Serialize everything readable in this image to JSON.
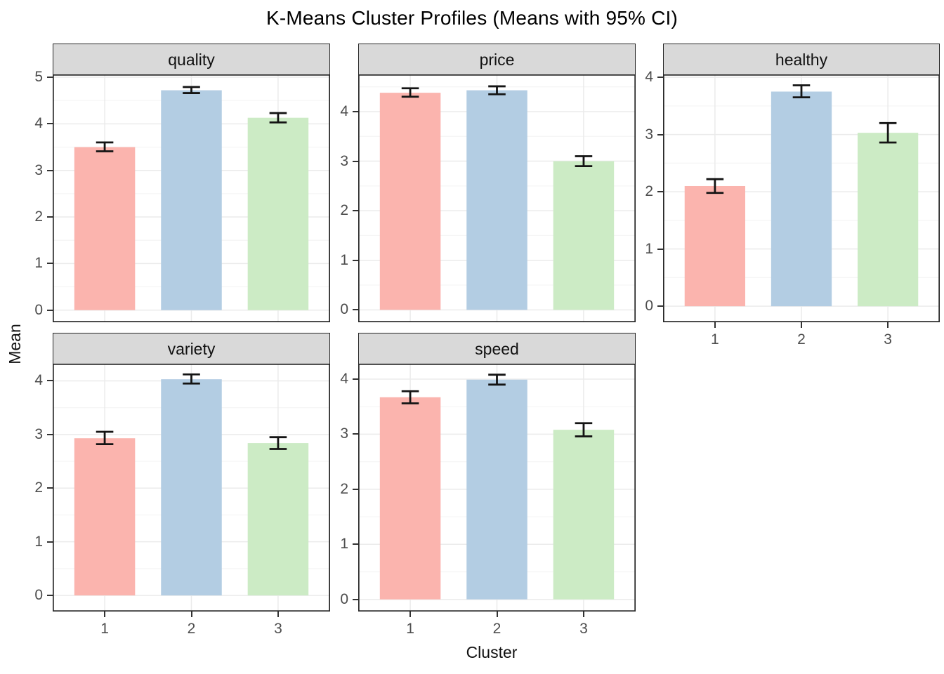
{
  "title": "K-Means Cluster Profiles (Means with 95% CI)",
  "y_axis_title": "Mean",
  "x_axis_title": "Cluster",
  "chart_data": {
    "type": "bar",
    "title": "K-Means Cluster Profiles (Means with 95% CI)",
    "xlabel": "Cluster",
    "ylabel": "Mean",
    "categories": [
      "1",
      "2",
      "3"
    ],
    "error_bar_meaning": "95% confidence interval",
    "bar_colors": [
      "#FBB4AE",
      "#B3CDE3",
      "#CCEBC5"
    ],
    "legend": "none",
    "facets": [
      {
        "label": "quality",
        "means": [
          3.5,
          4.72,
          4.13
        ],
        "ci_low": [
          3.41,
          4.66,
          4.03
        ],
        "ci_high": [
          3.6,
          4.79,
          4.23
        ],
        "yticks": [
          0,
          1,
          2,
          3,
          4,
          5
        ],
        "ylim": [
          -0.26,
          5.06
        ]
      },
      {
        "label": "price",
        "means": [
          4.38,
          4.43,
          3.0
        ],
        "ci_low": [
          4.3,
          4.35,
          2.9
        ],
        "ci_high": [
          4.47,
          4.51,
          3.1
        ],
        "yticks": [
          0,
          1,
          2,
          3,
          4
        ],
        "ylim": [
          -0.25,
          4.75
        ]
      },
      {
        "label": "healthy",
        "means": [
          2.1,
          3.75,
          3.03
        ],
        "ci_low": [
          1.98,
          3.65,
          2.86
        ],
        "ci_high": [
          2.22,
          3.86,
          3.2
        ],
        "yticks": [
          0,
          1,
          2,
          3,
          4
        ],
        "ylim": [
          -0.28,
          4.05
        ]
      },
      {
        "label": "variety",
        "means": [
          2.93,
          4.03,
          2.84
        ],
        "ci_low": [
          2.82,
          3.95,
          2.73
        ],
        "ci_high": [
          3.05,
          4.12,
          2.95
        ],
        "yticks": [
          0,
          1,
          2,
          3,
          4
        ],
        "ylim": [
          -0.3,
          4.32
        ]
      },
      {
        "label": "speed",
        "means": [
          3.67,
          3.99,
          3.08
        ],
        "ci_low": [
          3.56,
          3.9,
          2.96
        ],
        "ci_high": [
          3.78,
          4.08,
          3.2
        ],
        "yticks": [
          0,
          1,
          2,
          3,
          4
        ],
        "ylim": [
          -0.22,
          4.28
        ]
      }
    ],
    "layout_hints": {
      "facet_grid": "3 columns x 2 rows (facet_wrap), bottom-right cell empty",
      "gridlines": "light grey horizontal majors at integers, minors at halves, vertical majors at category centers",
      "bars_per_facet": 3,
      "x_axis_shown_on": [
        "healthy",
        "variety",
        "speed"
      ]
    }
  },
  "style": {
    "strip_bg": "#D9D9D9",
    "panel_border": "#262626",
    "grid_major": "#EBEBEB",
    "grid_minor": "#F5F5F5",
    "axis_text": "#4D4D4D",
    "tick_color": "#333333",
    "errorbar_color": "#141414"
  }
}
